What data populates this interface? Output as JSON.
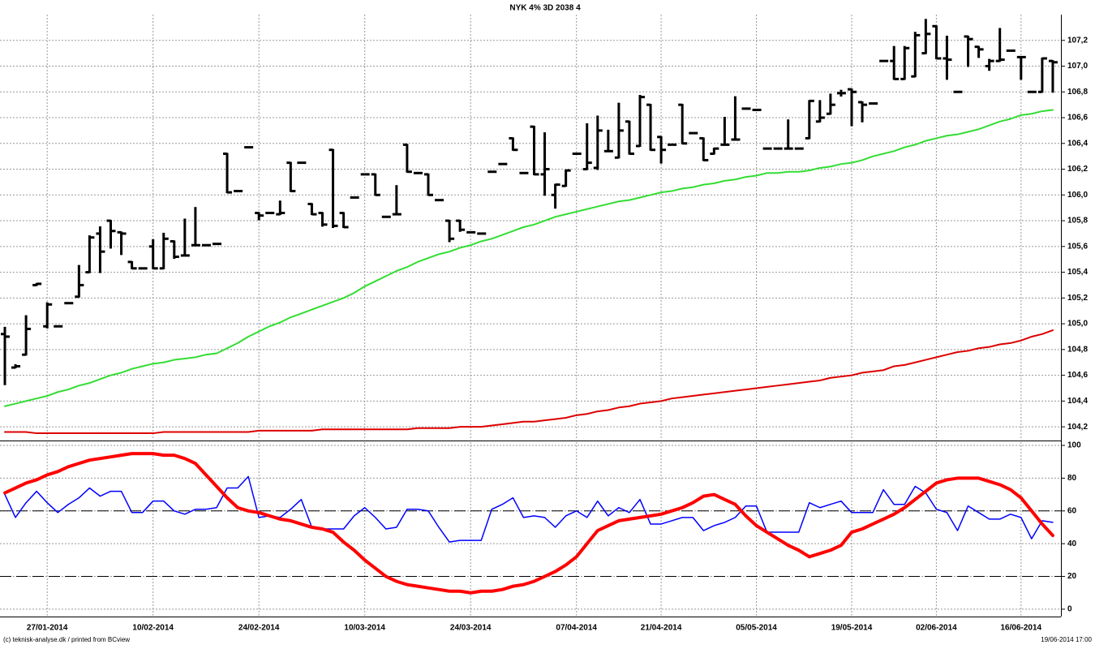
{
  "chart_data": [
    {
      "type": "ohlc",
      "title": "NYK 4% 3D 2038 4",
      "color": "#000000",
      "open": [
        104.92,
        104.66,
        104.76,
        105.3,
        104.98,
        104.98,
        105.16,
        105.21,
        105.4,
        105.7,
        105.8,
        105.71,
        105.48,
        105.43,
        105.6,
        105.43,
        105.64,
        105.53,
        105.61,
        105.61,
        105.62,
        106.32,
        106.03,
        106.37,
        105.86,
        105.86,
        105.85,
        106.25,
        106.25,
        105.93,
        105.86,
        106.35,
        105.86,
        105.98,
        106.16,
        106.16,
        105.83,
        105.85,
        106.39,
        106.17,
        106.16,
        105.96,
        105.8,
        105.8,
        105.71,
        105.7,
        106.18,
        106.24,
        106.44,
        106.17,
        106.53,
        106.16,
        106.0,
        106.07,
        106.32,
        106.2,
        106.21,
        106.34,
        106.29,
        106.57,
        106.38,
        106.7,
        106.45,
        106.39,
        106.7,
        106.48,
        106.44,
        106.32,
        106.39,
        106.43,
        106.67,
        106.66,
        106.36,
        106.36,
        106.36,
        106.36,
        106.44,
        106.57,
        106.63,
        106.79,
        106.82,
        106.72,
        106.71,
        107.04,
        107.04,
        106.9,
        106.92,
        107.1,
        107.31,
        107.06,
        106.8,
        107.23,
        107.15,
        107.0,
        107.04,
        107.12,
        107.07,
        106.8,
        106.8,
        107.04
      ],
      "high": [
        104.97,
        104.68,
        105.06,
        105.31,
        105.16,
        104.98,
        105.16,
        105.45,
        105.68,
        105.75,
        105.8,
        105.71,
        105.48,
        105.43,
        105.65,
        105.7,
        105.64,
        105.81,
        105.9,
        105.61,
        105.62,
        106.32,
        106.03,
        106.37,
        105.86,
        105.86,
        105.95,
        106.25,
        106.25,
        105.93,
        105.86,
        106.35,
        105.86,
        105.98,
        106.16,
        106.16,
        105.83,
        106.07,
        106.39,
        106.17,
        106.16,
        105.96,
        105.8,
        105.8,
        105.71,
        105.7,
        106.18,
        106.24,
        106.44,
        106.17,
        106.53,
        106.48,
        106.08,
        106.19,
        106.32,
        106.55,
        106.61,
        106.5,
        106.71,
        106.57,
        106.77,
        106.7,
        106.45,
        106.39,
        106.7,
        106.48,
        106.44,
        106.36,
        106.6,
        106.76,
        106.67,
        106.66,
        106.36,
        106.36,
        106.58,
        106.36,
        106.73,
        106.73,
        106.78,
        106.81,
        106.82,
        106.72,
        106.71,
        107.04,
        107.15,
        107.15,
        107.26,
        107.36,
        107.31,
        107.23,
        106.8,
        107.23,
        107.15,
        107.05,
        107.29,
        107.12,
        107.07,
        106.8,
        107.06,
        107.04
      ],
      "low": [
        104.53,
        104.66,
        104.76,
        105.3,
        104.97,
        104.98,
        105.16,
        105.21,
        105.4,
        105.4,
        105.59,
        105.54,
        105.43,
        105.43,
        105.43,
        105.43,
        105.51,
        105.53,
        105.61,
        105.61,
        105.62,
        106.02,
        106.03,
        106.37,
        105.81,
        105.86,
        105.85,
        106.03,
        106.25,
        105.85,
        105.76,
        105.75,
        105.75,
        105.98,
        106.16,
        106.0,
        105.83,
        105.85,
        106.18,
        106.17,
        106.0,
        105.96,
        105.64,
        105.72,
        105.71,
        105.7,
        106.18,
        106.24,
        106.35,
        106.17,
        106.16,
        106.0,
        105.9,
        106.07,
        106.32,
        106.2,
        106.2,
        106.34,
        106.29,
        106.32,
        106.38,
        106.35,
        106.25,
        106.39,
        106.4,
        106.48,
        106.27,
        106.32,
        106.39,
        106.43,
        106.67,
        106.66,
        106.36,
        106.36,
        106.36,
        106.36,
        106.44,
        106.57,
        106.63,
        106.77,
        106.54,
        106.57,
        106.71,
        107.04,
        106.9,
        106.9,
        106.92,
        107.1,
        107.06,
        106.9,
        106.8,
        107.0,
        107.07,
        106.97,
        107.04,
        107.12,
        106.9,
        106.8,
        106.8,
        106.8
      ],
      "close": [
        104.9,
        104.67,
        104.96,
        105.31,
        105.15,
        104.98,
        105.16,
        105.3,
        105.67,
        105.56,
        105.72,
        105.7,
        105.43,
        105.43,
        105.43,
        105.66,
        105.52,
        105.53,
        105.61,
        105.61,
        105.62,
        106.02,
        106.03,
        106.37,
        105.84,
        105.86,
        105.86,
        106.03,
        106.25,
        105.85,
        105.77,
        105.76,
        105.75,
        105.98,
        106.16,
        106.0,
        105.83,
        105.85,
        106.18,
        106.17,
        106.0,
        105.96,
        105.66,
        105.73,
        105.71,
        105.7,
        106.18,
        106.24,
        106.35,
        106.17,
        106.16,
        106.2,
        106.08,
        106.19,
        106.32,
        106.25,
        106.5,
        106.34,
        106.5,
        106.32,
        106.76,
        106.35,
        106.35,
        106.39,
        106.4,
        106.48,
        106.27,
        106.36,
        106.39,
        106.43,
        106.67,
        106.66,
        106.36,
        106.36,
        106.36,
        106.36,
        106.73,
        106.6,
        106.7,
        106.79,
        106.8,
        106.7,
        106.71,
        107.04,
        106.9,
        107.14,
        107.24,
        107.25,
        107.06,
        107.05,
        106.8,
        107.21,
        107.13,
        107.04,
        107.05,
        107.12,
        107.07,
        106.8,
        107.06,
        107.03
      ],
      "series": [
        {
          "color": "#33dd33",
          "values": [
            104.36,
            104.38,
            104.4,
            104.42,
            104.44,
            104.47,
            104.49,
            104.52,
            104.54,
            104.57,
            104.6,
            104.62,
            104.65,
            104.67,
            104.69,
            104.7,
            104.72,
            104.73,
            104.74,
            104.76,
            104.77,
            104.81,
            104.85,
            104.9,
            104.94,
            104.98,
            105.01,
            105.05,
            105.08,
            105.11,
            105.14,
            105.17,
            105.2,
            105.24,
            105.29,
            105.33,
            105.37,
            105.41,
            105.44,
            105.48,
            105.51,
            105.54,
            105.56,
            105.59,
            105.61,
            105.64,
            105.66,
            105.69,
            105.72,
            105.75,
            105.77,
            105.8,
            105.83,
            105.85,
            105.87,
            105.89,
            105.91,
            105.93,
            105.95,
            105.96,
            105.98,
            106.0,
            106.02,
            106.03,
            106.05,
            106.06,
            106.08,
            106.09,
            106.11,
            106.12,
            106.14,
            106.15,
            106.17,
            106.17,
            106.18,
            106.18,
            106.19,
            106.21,
            106.22,
            106.24,
            106.25,
            106.27,
            106.3,
            106.32,
            106.34,
            106.37,
            106.39,
            106.42,
            106.44,
            106.46,
            106.47,
            106.49,
            106.51,
            106.54,
            106.57,
            106.59,
            106.62,
            106.63,
            106.65,
            106.66
          ]
        },
        {
          "color": "#dd0000",
          "values": [
            104.16,
            104.16,
            104.16,
            104.15,
            104.15,
            104.15,
            104.15,
            104.15,
            104.15,
            104.15,
            104.15,
            104.15,
            104.15,
            104.15,
            104.15,
            104.16,
            104.16,
            104.16,
            104.16,
            104.16,
            104.16,
            104.16,
            104.16,
            104.16,
            104.17,
            104.17,
            104.17,
            104.17,
            104.17,
            104.17,
            104.18,
            104.18,
            104.18,
            104.18,
            104.18,
            104.18,
            104.18,
            104.18,
            104.18,
            104.19,
            104.19,
            104.19,
            104.19,
            104.2,
            104.2,
            104.2,
            104.21,
            104.22,
            104.23,
            104.24,
            104.24,
            104.25,
            104.26,
            104.27,
            104.29,
            104.3,
            104.32,
            104.33,
            104.35,
            104.36,
            104.38,
            104.39,
            104.4,
            104.42,
            104.43,
            104.44,
            104.45,
            104.46,
            104.47,
            104.48,
            104.49,
            104.5,
            104.51,
            104.52,
            104.53,
            104.54,
            104.55,
            104.56,
            104.58,
            104.59,
            104.6,
            104.62,
            104.63,
            104.64,
            104.67,
            104.68,
            104.7,
            104.72,
            104.74,
            104.76,
            104.78,
            104.79,
            104.81,
            104.82,
            104.84,
            104.85,
            104.87,
            104.9,
            104.92,
            104.95
          ]
        }
      ],
      "ylim": [
        104.1,
        107.4
      ],
      "yticks": [
        {
          "value": 104.2,
          "label": "104,2"
        },
        {
          "value": 104.4,
          "label": "104,4"
        },
        {
          "value": 104.6,
          "label": "104,6"
        },
        {
          "value": 104.8,
          "label": "104,8"
        },
        {
          "value": 105.0,
          "label": "105,0"
        },
        {
          "value": 105.2,
          "label": "105,2"
        },
        {
          "value": 105.4,
          "label": "105,4"
        },
        {
          "value": 105.6,
          "label": "105,6"
        },
        {
          "value": 105.8,
          "label": "105,8"
        },
        {
          "value": 106.0,
          "label": "106,0"
        },
        {
          "value": 106.2,
          "label": "106,2"
        },
        {
          "value": 106.4,
          "label": "106,4"
        },
        {
          "value": 106.6,
          "label": "106,6"
        },
        {
          "value": 106.8,
          "label": "106,8"
        },
        {
          "value": 107.0,
          "label": "107,0"
        },
        {
          "value": 107.2,
          "label": "107,2"
        }
      ],
      "grid": true
    },
    {
      "type": "line",
      "categories": [
        null,
        null,
        null,
        null,
        "27/01-2014",
        null,
        null,
        null,
        null,
        null,
        null,
        null,
        null,
        null,
        "10/02-2014",
        null,
        null,
        null,
        null,
        null,
        null,
        null,
        null,
        null,
        "24/02-2014",
        null,
        null,
        null,
        null,
        null,
        null,
        null,
        null,
        null,
        "10/03-2014",
        null,
        null,
        null,
        null,
        null,
        null,
        null,
        null,
        null,
        "24/03-2014",
        null,
        null,
        null,
        null,
        null,
        null,
        null,
        null,
        null,
        "07/04-2014",
        null,
        null,
        null,
        null,
        null,
        null,
        null,
        "21/04-2014",
        null,
        null,
        null,
        null,
        null,
        null,
        null,
        null,
        "05/05-2014",
        null,
        null,
        null,
        null,
        null,
        null,
        null,
        null,
        "19/05-2014",
        null,
        null,
        null,
        null,
        null,
        null,
        null,
        "02/06-2014",
        null,
        null,
        null,
        null,
        null,
        null,
        null,
        "16/06-2014",
        null,
        null,
        null
      ],
      "series": [
        {
          "color": "#0000ff",
          "values": [
            70,
            56,
            65,
            72,
            65,
            59,
            64,
            68,
            74,
            69,
            72,
            72,
            59,
            59,
            66,
            66,
            60,
            58,
            61,
            61,
            62,
            74,
            74,
            81,
            56,
            57,
            56,
            61,
            67,
            50,
            49,
            49,
            49,
            57,
            62,
            56,
            49,
            50,
            61,
            61,
            60,
            50,
            41,
            42,
            42,
            42,
            61,
            64,
            68,
            56,
            57,
            56,
            50,
            57,
            60,
            56,
            66,
            57,
            62,
            59,
            67,
            52,
            52,
            54,
            56,
            56,
            48,
            51,
            53,
            56,
            63,
            63,
            47,
            47,
            47,
            47,
            65,
            62,
            64,
            66,
            59,
            59,
            59,
            73,
            64,
            64,
            75,
            71,
            61,
            59,
            48,
            63,
            59,
            55,
            55,
            58,
            56,
            43,
            54,
            53
          ]
        },
        {
          "color": "#ff0000",
          "values": [
            71,
            74,
            77,
            79,
            82,
            84,
            87,
            89,
            91,
            92,
            93,
            94,
            95,
            95,
            95,
            94,
            94,
            92,
            89,
            82,
            75,
            68,
            62,
            60,
            59,
            57,
            55,
            54,
            52,
            50,
            49,
            47,
            41,
            36,
            30,
            25,
            20,
            17,
            15,
            14,
            13,
            12,
            11,
            11,
            10,
            11,
            11,
            12,
            14,
            15,
            17,
            20,
            23,
            27,
            32,
            40,
            48,
            51,
            54,
            55,
            56,
            57,
            58,
            60,
            62,
            65,
            69,
            70,
            67,
            64,
            57,
            51,
            47,
            43,
            39,
            36,
            32,
            34,
            36,
            39,
            47,
            49,
            52,
            55,
            58,
            62,
            67,
            72,
            77,
            79,
            80,
            80,
            80,
            78,
            76,
            73,
            68,
            60,
            52,
            45
          ]
        }
      ],
      "ylim": [
        -4,
        102
      ],
      "yticks": [
        0,
        20,
        40,
        60,
        80,
        100
      ],
      "grid": true,
      "reference_lines": [
        20,
        60
      ]
    }
  ],
  "footer": {
    "left": "(c) teknisk-analyse.dk / printed from BCview",
    "right": "19/06-2014 17:00"
  }
}
